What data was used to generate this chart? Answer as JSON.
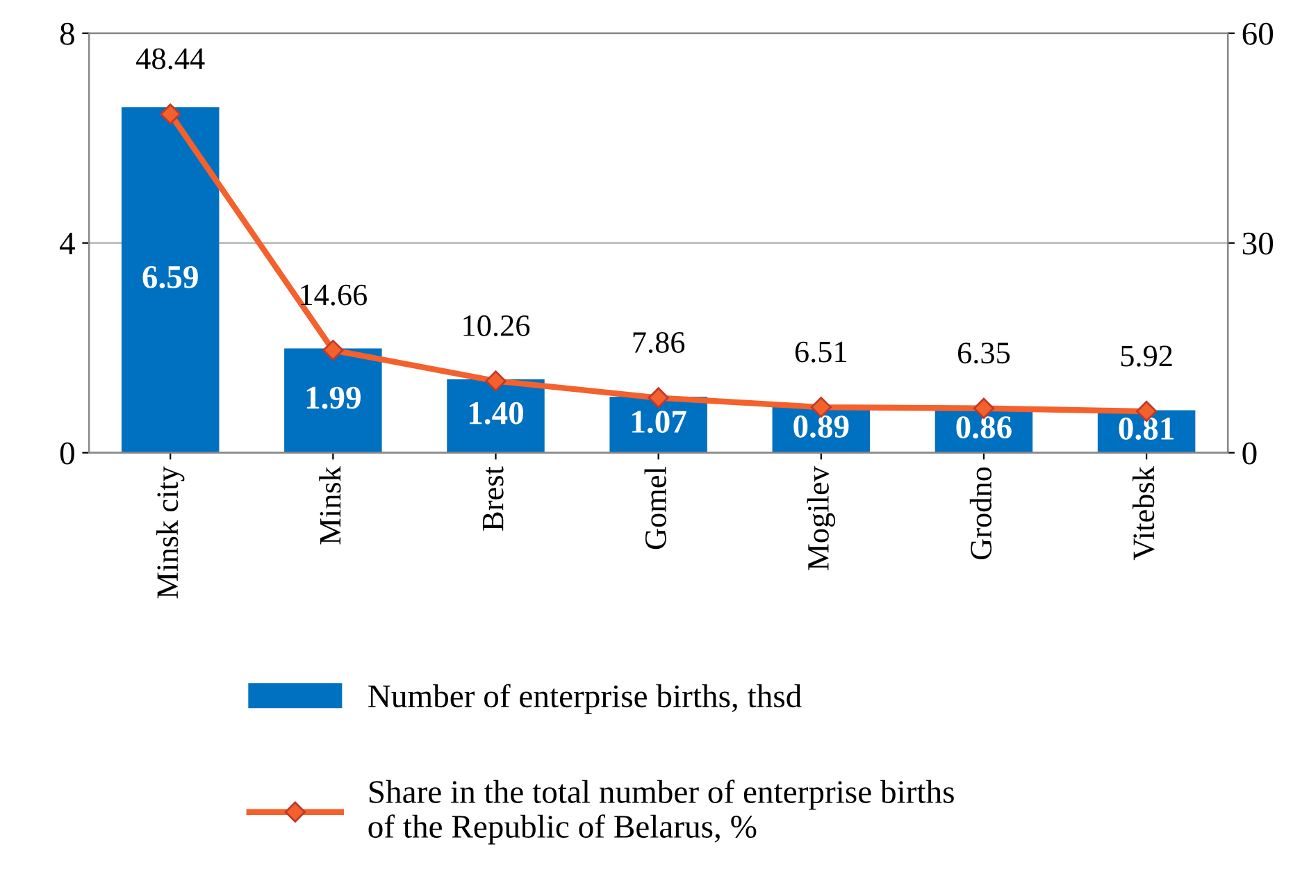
{
  "chart_data": {
    "type": "bar",
    "categories": [
      "Minsk city",
      "Minsk",
      "Brest",
      "Gomel",
      "Mogilev",
      "Grodno",
      "Vitebsk"
    ],
    "series": [
      {
        "name": "Number of enterprise births, thsd",
        "color": "#0070c0",
        "values": [
          6.59,
          1.99,
          1.4,
          1.07,
          0.89,
          0.86,
          0.81
        ],
        "value_labels": [
          "6.59",
          "1.99",
          "1.40",
          "1.07",
          "0.89",
          "0.86",
          "0.81"
        ]
      },
      {
        "name": "Share in the total number of enterprise births\nof the Republic of Belarus, %",
        "type": "line",
        "axis": "y2",
        "color": "#f4612c",
        "values": [
          48.44,
          14.66,
          10.26,
          7.86,
          6.51,
          6.35,
          5.92
        ],
        "value_labels": [
          "48.44",
          "14.66",
          "10.26",
          "7.86",
          "6.51",
          "6.35",
          "5.92"
        ]
      }
    ],
    "ylim": [
      0,
      8
    ],
    "yticks": [
      0,
      4,
      8
    ],
    "y2lim": [
      0,
      60
    ],
    "y2ticks": [
      0,
      30,
      60
    ],
    "grid": "y",
    "legend": "bottom",
    "data_labels": true,
    "marker": "diamond",
    "line_style": "solid"
  }
}
